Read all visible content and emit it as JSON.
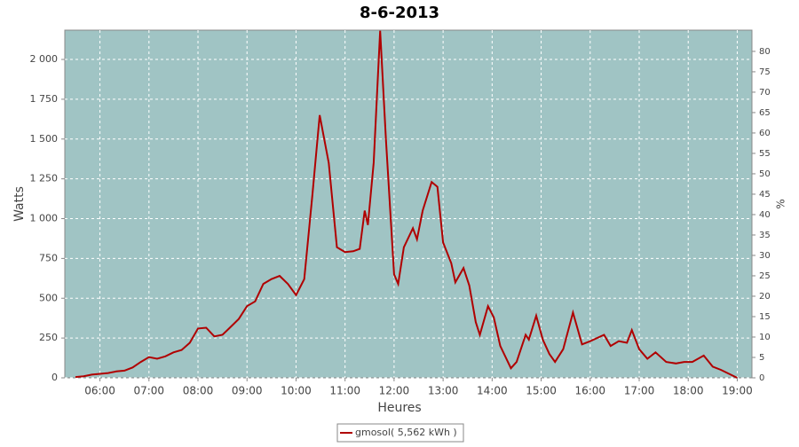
{
  "chart_data": {
    "type": "line",
    "title": "8-6-2013",
    "xlabel": "Heures",
    "ylabel": "Watts",
    "y2label": "%",
    "x": [
      "05:30",
      "05:40",
      "05:50",
      "06:00",
      "06:10",
      "06:20",
      "06:30",
      "06:40",
      "06:50",
      "07:00",
      "07:10",
      "07:20",
      "07:30",
      "07:40",
      "07:50",
      "08:00",
      "08:10",
      "08:20",
      "08:30",
      "08:40",
      "08:50",
      "09:00",
      "09:10",
      "09:20",
      "09:30",
      "09:40",
      "09:50",
      "10:00",
      "10:10",
      "10:20",
      "10:29",
      "10:40",
      "10:50",
      "11:00",
      "11:10",
      "11:18",
      "11:24",
      "11:28",
      "11:35",
      "11:43",
      "11:50",
      "12:00",
      "12:05",
      "12:12",
      "12:23",
      "12:28",
      "12:35",
      "12:46",
      "12:53",
      "13:00",
      "13:10",
      "13:15",
      "13:25",
      "13:32",
      "13:40",
      "13:45",
      "13:55",
      "14:02",
      "14:10",
      "14:23",
      "14:30",
      "14:41",
      "14:45",
      "14:54",
      "15:02",
      "15:10",
      "15:17",
      "15:27",
      "15:39",
      "15:50",
      "16:00",
      "16:17",
      "16:25",
      "16:35",
      "16:45",
      "16:51",
      "17:00",
      "17:10",
      "17:20",
      "17:33",
      "17:45",
      "17:55",
      "18:05",
      "18:19",
      "18:30",
      "18:40",
      "18:50",
      "19:00"
    ],
    "series": [
      {
        "name": "gmosol( 5,562 kWh )",
        "color": "#b00000",
        "values": [
          5,
          10,
          20,
          25,
          30,
          40,
          45,
          65,
          100,
          130,
          120,
          135,
          160,
          175,
          220,
          310,
          315,
          260,
          270,
          320,
          370,
          450,
          480,
          590,
          620,
          640,
          590,
          520,
          620,
          1150,
          1650,
          1350,
          820,
          790,
          795,
          810,
          1050,
          960,
          1350,
          2180,
          1500,
          650,
          590,
          820,
          940,
          870,
          1050,
          1230,
          1200,
          850,
          720,
          600,
          690,
          580,
          350,
          270,
          450,
          380,
          200,
          60,
          100,
          270,
          240,
          390,
          240,
          150,
          100,
          180,
          410,
          210,
          230,
          270,
          200,
          230,
          220,
          300,
          180,
          120,
          160,
          100,
          90,
          100,
          100,
          140,
          70,
          50,
          25,
          0
        ]
      }
    ],
    "xlim": [
      "05:17",
      "19:18"
    ],
    "xticks": [
      "06:00",
      "07:00",
      "08:00",
      "09:00",
      "10:00",
      "11:00",
      "12:00",
      "13:00",
      "14:00",
      "15:00",
      "16:00",
      "17:00",
      "18:00",
      "19:00"
    ],
    "ylim": [
      0,
      2184
    ],
    "yticks": [
      0,
      250,
      500,
      750,
      {
        "value": 1000,
        "label": "1 000"
      },
      {
        "value": 1250,
        "label": "1 250"
      },
      {
        "value": 1500,
        "label": "1 500"
      },
      {
        "value": 1750,
        "label": "1 750"
      },
      {
        "value": 2000,
        "label": "2 000"
      }
    ],
    "y2lim": [
      0,
      85.2
    ],
    "y2ticks": [
      0,
      5,
      10,
      15,
      20,
      25,
      30,
      35,
      40,
      45,
      50,
      55,
      60,
      65,
      70,
      75,
      80
    ],
    "grid": true,
    "background": "#a0c4c4",
    "legend": "bottom"
  }
}
